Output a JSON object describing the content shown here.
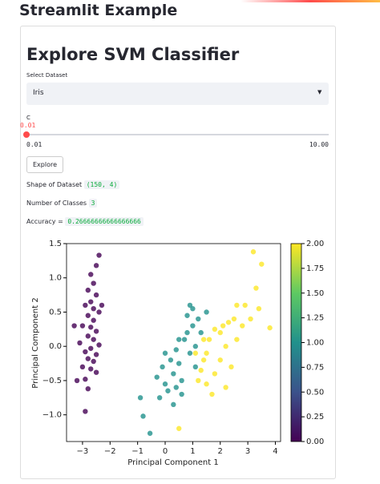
{
  "header": {
    "title": "Streamlit Example"
  },
  "app": {
    "title": "Explore SVM Classifier",
    "select": {
      "label": "Select Dataset",
      "value": "Iris"
    },
    "slider": {
      "label": "C",
      "value": 0.01,
      "min": 0.01,
      "max": 10,
      "max_label": "10.00"
    },
    "button": "Explore",
    "shape_label": "Shape of Dataset",
    "shape": "(150, 4)",
    "classes_label": "Number of Classes",
    "classes": 3,
    "accuracy_label": "Accuracy =",
    "accuracy": "0.26666666666666666"
  },
  "chart_data": {
    "type": "scatter",
    "x": [
      -2.4,
      -2.5,
      -2.7,
      -2.6,
      -2.8,
      -2.5,
      -2.7,
      -2.9,
      -2.6,
      -2.4,
      -2.8,
      -2.6,
      -3.0,
      -2.7,
      -2.5,
      -2.8,
      -2.6,
      -3.1,
      -2.4,
      -2.7,
      -2.9,
      -2.5,
      -2.8,
      -2.6,
      -3.0,
      -2.7,
      -2.5,
      -2.9,
      -3.2,
      -2.8,
      -2.9,
      -2.3,
      -3.3,
      -0.9,
      -0.8,
      -0.55,
      -0.3,
      -0.1,
      0.0,
      0.1,
      0.2,
      0.3,
      0.0,
      0.4,
      0.5,
      0.6,
      0.7,
      0.8,
      0.9,
      1.0,
      1.1,
      0.8,
      1.0,
      1.2,
      1.3,
      1.1,
      0.6,
      0.3,
      1.5,
      0.9,
      0.5,
      -0.2,
      0.4,
      3.2,
      3.5,
      3.3,
      3.4,
      3.8,
      2.9,
      2.6,
      2.5,
      2.3,
      2.1,
      2.0,
      1.8,
      1.6,
      1.5,
      1.4,
      1.3,
      1.2,
      1.5,
      1.8,
      2.0,
      2.2,
      2.6,
      2.4,
      1.7,
      1.4,
      0.5,
      2.8,
      3.1,
      1.1,
      2.2
    ],
    "y": [
      1.33,
      1.18,
      1.05,
      0.92,
      0.82,
      0.75,
      0.65,
      0.6,
      0.55,
      0.5,
      0.45,
      0.38,
      0.3,
      0.28,
      0.22,
      0.15,
      0.1,
      0.05,
      0.02,
      -0.03,
      -0.08,
      -0.12,
      -0.18,
      -0.22,
      -0.3,
      -0.33,
      -0.38,
      -0.48,
      -0.5,
      -0.62,
      -0.95,
      0.6,
      0.3,
      -0.75,
      -1.02,
      -1.27,
      -0.45,
      -0.3,
      -0.55,
      -0.65,
      -0.2,
      -0.4,
      -0.1,
      -0.05,
      -0.25,
      -0.5,
      0.1,
      0.2,
      -0.1,
      0.3,
      0.0,
      0.45,
      0.55,
      0.4,
      0.2,
      -0.3,
      -0.7,
      -0.85,
      0.5,
      0.6,
      0.1,
      -0.75,
      -0.6,
      1.38,
      1.2,
      0.85,
      0.55,
      0.27,
      0.6,
      0.6,
      0.4,
      0.35,
      0.3,
      0.2,
      0.25,
      0.1,
      -0.1,
      -0.2,
      -0.35,
      -0.5,
      -0.55,
      -0.4,
      -0.2,
      0.0,
      0.1,
      -0.3,
      -0.7,
      0.1,
      -1.2,
      0.3,
      0.4,
      -0.1,
      -0.6
    ],
    "c": [
      0,
      0,
      0,
      0,
      0,
      0,
      0,
      0,
      0,
      0,
      0,
      0,
      0,
      0,
      0,
      0,
      0,
      0,
      0,
      0,
      0,
      0,
      0,
      0,
      0,
      0,
      0,
      0,
      0,
      0,
      0,
      0,
      0,
      1,
      1,
      1,
      1,
      1,
      1,
      1,
      1,
      1,
      1,
      1,
      1,
      1,
      1,
      1,
      1,
      1,
      1,
      1,
      1,
      1,
      1,
      1,
      1,
      1,
      1,
      1,
      1,
      1,
      1,
      2,
      2,
      2,
      2,
      2,
      2,
      2,
      2,
      2,
      2,
      2,
      2,
      2,
      2,
      2,
      2,
      2,
      2,
      2,
      2,
      2,
      2,
      2,
      2,
      2,
      2,
      2,
      2,
      2,
      2
    ],
    "xlabel": "Principal Component 1",
    "ylabel": "Principal Component 2",
    "xlim": [
      -3.58,
      4.19
    ],
    "xticks": [
      {
        "value": -3,
        "label": "−3"
      },
      {
        "value": -2,
        "label": "−2"
      },
      {
        "value": -1,
        "label": "−1"
      },
      0,
      1,
      2,
      3,
      4
    ],
    "ylim": [
      -1.39,
      1.5
    ],
    "yticks": [
      {
        "value": -1,
        "label": "−1.0"
      },
      {
        "value": -0.5,
        "label": "−0.5"
      },
      {
        "value": 0,
        "label": "0.0"
      },
      0.5,
      {
        "value": 1,
        "label": "1.0"
      },
      1.5
    ],
    "colorbar": {
      "lim": [
        0,
        2
      ],
      "colors": [
        "#440154",
        "#3b528b",
        "#21918c",
        "#5ec962",
        "#fde725"
      ],
      "ticks": [
        {
          "value": 0,
          "label": "0.00"
        },
        {
          "value": 0.25,
          "label": "0.25"
        },
        {
          "value": 0.5,
          "label": "0.50"
        },
        {
          "value": 0.75,
          "label": "0.75"
        },
        {
          "value": 1,
          "label": "1.00"
        },
        {
          "value": 1.25,
          "label": "1.25"
        },
        {
          "value": 1.5,
          "label": "1.50"
        },
        {
          "value": 1.75,
          "label": "1.75"
        },
        {
          "value": 2,
          "label": "2.00"
        }
      ]
    }
  }
}
